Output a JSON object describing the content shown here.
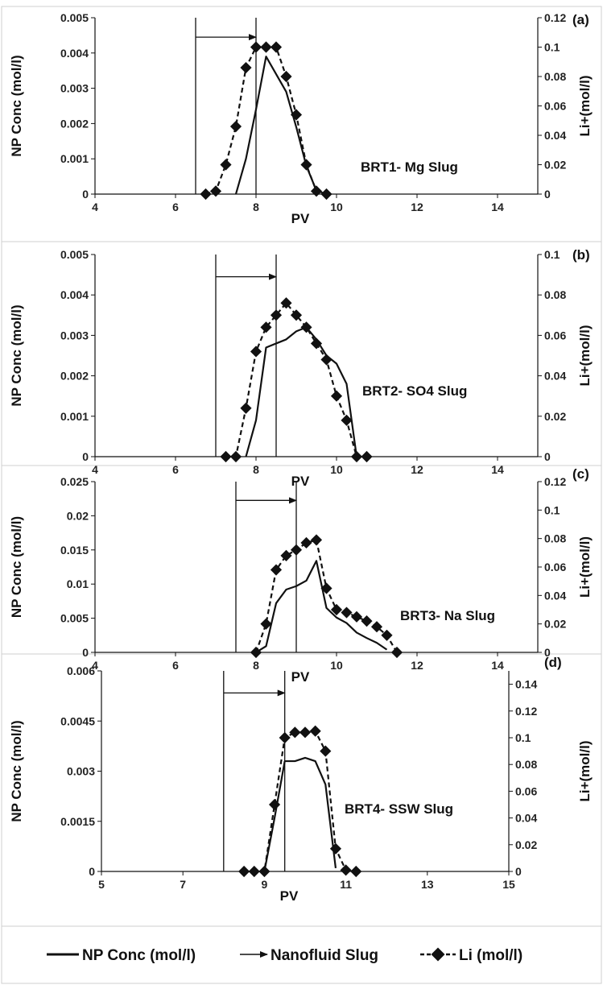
{
  "chart_data": [
    {
      "type": "line",
      "panel_label": "(a)",
      "annotation": "BRT1- Mg Slug",
      "xlabel": "PV",
      "ylabel": "NP Conc (mol/l)",
      "y2label": "Li+(mol/l)",
      "xlim": [
        4,
        15
      ],
      "ylim": [
        0,
        0.005
      ],
      "y2lim": [
        0,
        0.12
      ],
      "x_ticks": [
        "4",
        "6",
        "8",
        "10",
        "12",
        "14"
      ],
      "y_ticks": [
        "0",
        "0.001",
        "0.002",
        "0.003",
        "0.004",
        "0.005"
      ],
      "y2_ticks": [
        "0",
        "0.02",
        "0.04",
        "0.06",
        "0.08",
        "0.1",
        "0.12"
      ],
      "slug": {
        "start": 6.5,
        "end": 8.0
      },
      "series": [
        {
          "name": "NP Conc (mol/l)",
          "axis": "left",
          "x": [
            7.5,
            7.75,
            8.0,
            8.25,
            8.5,
            8.75,
            9.0,
            9.25,
            9.5,
            9.75
          ],
          "values": [
            0.0,
            0.001,
            0.0024,
            0.0039,
            0.0034,
            0.0029,
            0.0019,
            0.0008,
            0.0001,
            0.0
          ]
        },
        {
          "name": "Li (mol/l)",
          "axis": "right",
          "x": [
            6.75,
            7.0,
            7.25,
            7.5,
            7.75,
            8.0,
            8.25,
            8.5,
            8.75,
            9.0,
            9.25,
            9.5,
            9.75
          ],
          "values": [
            0.0,
            0.002,
            0.02,
            0.046,
            0.086,
            0.1,
            0.1,
            0.1,
            0.08,
            0.054,
            0.02,
            0.002,
            0.0
          ]
        }
      ]
    },
    {
      "type": "line",
      "panel_label": "(b)",
      "annotation": "BRT2- SO4 Slug",
      "xlabel": "PV",
      "ylabel": "NP Conc (mol/l)",
      "y2label": "Li+(mol/l)",
      "xlim": [
        4,
        15
      ],
      "ylim": [
        0,
        0.005
      ],
      "y2lim": [
        0,
        0.1
      ],
      "x_ticks": [
        "4",
        "6",
        "8",
        "10",
        "12",
        "14"
      ],
      "y_ticks": [
        "0",
        "0.001",
        "0.002",
        "0.003",
        "0.004",
        "0.005"
      ],
      "y2_ticks": [
        "0",
        "0.02",
        "0.04",
        "0.06",
        "0.08",
        "0.1"
      ],
      "slug": {
        "start": 7.0,
        "end": 8.5
      },
      "series": [
        {
          "name": "NP Conc (mol/l)",
          "axis": "left",
          "x": [
            7.75,
            8.0,
            8.25,
            8.5,
            8.75,
            9.0,
            9.25,
            9.5,
            9.75,
            10.0,
            10.25,
            10.5
          ],
          "values": [
            0.0,
            0.0009,
            0.0027,
            0.0028,
            0.0029,
            0.0031,
            0.0032,
            0.0029,
            0.0025,
            0.0023,
            0.0018,
            0.0
          ]
        },
        {
          "name": "Li (mol/l)",
          "axis": "right",
          "x": [
            7.25,
            7.5,
            7.75,
            8.0,
            8.25,
            8.5,
            8.75,
            9.0,
            9.25,
            9.5,
            9.75,
            10.0,
            10.25,
            10.5,
            10.75
          ],
          "values": [
            0.0,
            0.0,
            0.024,
            0.052,
            0.064,
            0.07,
            0.076,
            0.07,
            0.064,
            0.056,
            0.048,
            0.03,
            0.018,
            0.0,
            0.0
          ]
        }
      ]
    },
    {
      "type": "line",
      "panel_label": "(c)",
      "annotation": "BRT3- Na Slug",
      "xlabel": "PV",
      "ylabel": "NP Conc (mol/l)",
      "y2label": "Li+(mol/l)",
      "xlim": [
        4,
        15
      ],
      "ylim": [
        0,
        0.025
      ],
      "y2lim": [
        0,
        0.12
      ],
      "x_ticks": [
        "4",
        "6",
        "8",
        "10",
        "12",
        "14"
      ],
      "y_ticks": [
        "0",
        "0.005",
        "0.01",
        "0.015",
        "0.02",
        "0.025"
      ],
      "y2_ticks": [
        "0",
        "0.02",
        "0.04",
        "0.06",
        "0.08",
        "0.1",
        "0.12"
      ],
      "slug": {
        "start": 7.5,
        "end": 9.0
      },
      "series": [
        {
          "name": "NP Conc (mol/l)",
          "axis": "left",
          "x": [
            8.0,
            8.25,
            8.5,
            8.75,
            9.0,
            9.25,
            9.5,
            9.75,
            10.0,
            10.25,
            10.5,
            10.75,
            11.0,
            11.25
          ],
          "values": [
            0.0,
            0.0009,
            0.0072,
            0.0092,
            0.0097,
            0.0105,
            0.0134,
            0.0065,
            0.0051,
            0.0043,
            0.0029,
            0.0021,
            0.0014,
            0.0004
          ]
        },
        {
          "name": "Li (mol/l)",
          "axis": "right",
          "x": [
            8.0,
            8.25,
            8.5,
            8.75,
            9.0,
            9.25,
            9.5,
            9.75,
            10.0,
            10.25,
            10.5,
            10.75,
            11.0,
            11.25,
            11.5
          ],
          "values": [
            0.0,
            0.02,
            0.058,
            0.068,
            0.072,
            0.077,
            0.079,
            0.045,
            0.03,
            0.028,
            0.025,
            0.022,
            0.018,
            0.012,
            0.0
          ]
        }
      ]
    },
    {
      "type": "line",
      "panel_label": "(d)",
      "annotation": "BRT4- SSW Slug",
      "xlabel": "PV",
      "ylabel": "NP Conc (mol/l)",
      "y2label": "Li+(mol/l)",
      "xlim": [
        5,
        15
      ],
      "ylim": [
        0,
        0.006
      ],
      "y2lim": [
        0,
        0.15
      ],
      "x_ticks": [
        "5",
        "7",
        "9",
        "11",
        "13",
        "15"
      ],
      "y_ticks": [
        "0",
        "0.0015",
        "0.003",
        "0.0045",
        "0.006"
      ],
      "y2_ticks": [
        "0",
        "0.02",
        "0.04",
        "0.06",
        "0.08",
        "0.1",
        "0.12",
        "0.14"
      ],
      "slug": {
        "start": 8.0,
        "end": 9.5
      },
      "series": [
        {
          "name": "NP Conc (mol/l)",
          "axis": "left",
          "x": [
            9.0,
            9.25,
            9.5,
            9.75,
            10.0,
            10.25,
            10.5,
            10.75
          ],
          "values": [
            0.0,
            0.0016,
            0.0033,
            0.0033,
            0.0034,
            0.0033,
            0.0026,
            0.0001
          ]
        },
        {
          "name": "Li (mol/l)",
          "axis": "right",
          "x": [
            8.5,
            8.75,
            9.0,
            9.25,
            9.5,
            9.75,
            10.0,
            10.25,
            10.5,
            10.75,
            11.0,
            11.25
          ],
          "values": [
            0.0,
            0.0,
            0.0,
            0.05,
            0.1,
            0.104,
            0.104,
            0.105,
            0.09,
            0.017,
            0.001,
            0.0
          ]
        }
      ]
    }
  ],
  "legend": {
    "np_label": "NP Conc (mol/l)",
    "slug_label": "Nanofluid Slug",
    "li_label": "Li (mol/l)"
  }
}
